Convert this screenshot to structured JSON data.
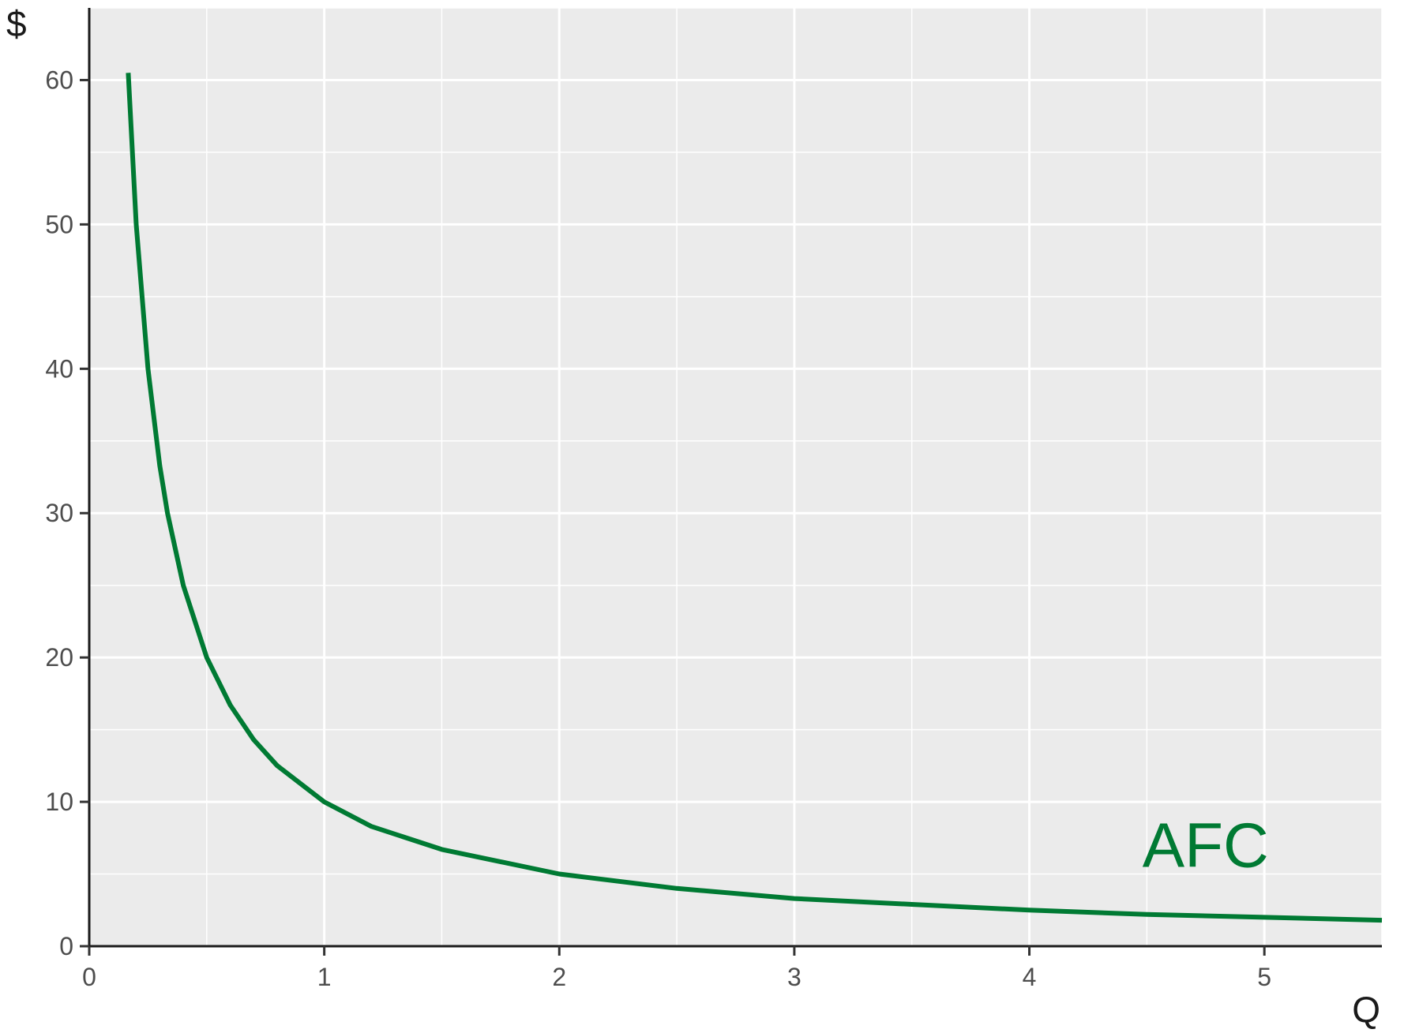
{
  "chart_data": {
    "type": "line",
    "xlabel": "Q",
    "ylabel": "$",
    "xlim": [
      0,
      5.5
    ],
    "ylim": [
      0,
      65
    ],
    "x_ticks": [
      0,
      1,
      2,
      3,
      4,
      5
    ],
    "y_ticks": [
      0,
      10,
      20,
      30,
      40,
      50,
      60
    ],
    "grid": true,
    "panel_background": "#ebebeb",
    "series": [
      {
        "name": "AFC",
        "color": "#007a33",
        "x": [
          0.166,
          0.2,
          0.25,
          0.3,
          0.333,
          0.4,
          0.5,
          0.6,
          0.7,
          0.8,
          1.0,
          1.2,
          1.5,
          2.0,
          2.5,
          3.0,
          3.5,
          4.0,
          4.5,
          5.0,
          5.5
        ],
        "y": [
          60.5,
          50.0,
          40.0,
          33.3,
          30.0,
          25.0,
          20.0,
          16.7,
          14.3,
          12.5,
          10.0,
          8.3,
          6.7,
          5.0,
          4.0,
          3.3,
          2.9,
          2.5,
          2.2,
          2.0,
          1.8
        ]
      }
    ],
    "annotations": [
      {
        "text": "AFC",
        "x": 4.75,
        "y": 5.5,
        "color": "#007a33"
      }
    ]
  }
}
